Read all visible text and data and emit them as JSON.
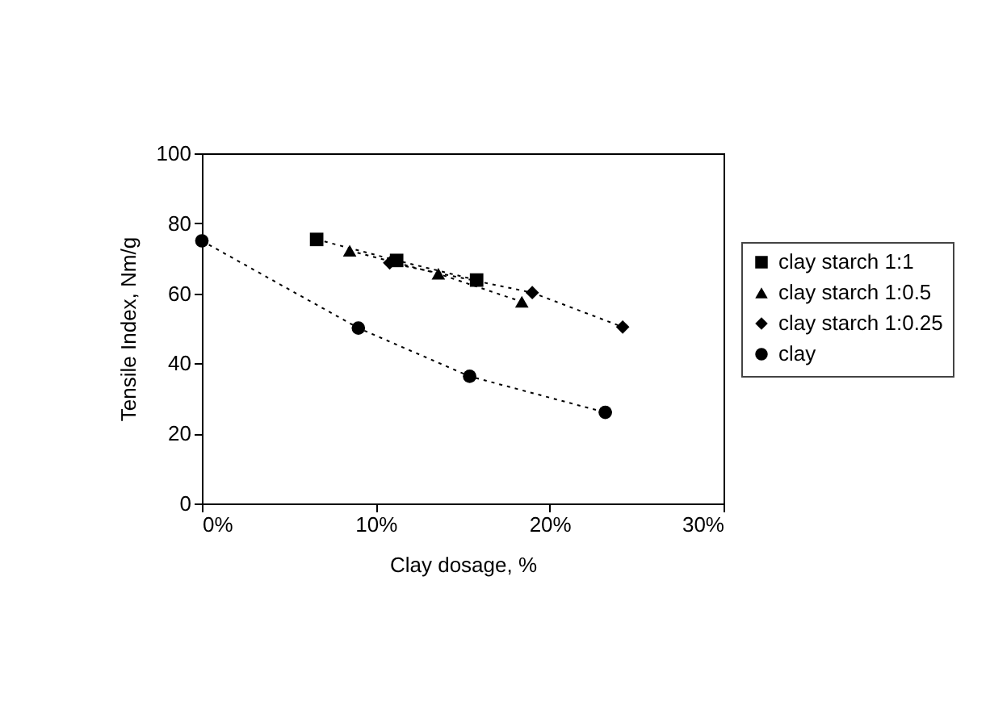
{
  "chart_data": {
    "type": "line",
    "xlabel": "Clay dosage, %",
    "ylabel": "Tensile Index, Nm/g",
    "xlim": [
      0,
      30
    ],
    "xticks": [
      {
        "value": 0,
        "label": "0%"
      },
      {
        "value": 10,
        "label": "10%"
      },
      {
        "value": 20,
        "label": "20%"
      },
      {
        "value": 30,
        "label": "30%"
      }
    ],
    "ylim": [
      0,
      100
    ],
    "yticks": [
      0,
      20,
      40,
      60,
      80,
      100
    ],
    "grid": false,
    "legend": "right",
    "line_style": "dotted",
    "series": [
      {
        "name": "clay starch 1:1",
        "color": "#000000",
        "marker": "square",
        "x": [
          6.6,
          11.2,
          15.8
        ],
        "values": [
          75.4,
          69.4,
          63.8
        ]
      },
      {
        "name": "clay starch 1:0.5",
        "color": "#000000",
        "marker": "triangle",
        "x": [
          8.5,
          13.6,
          18.4
        ],
        "values": [
          72.2,
          65.6,
          57.6
        ]
      },
      {
        "name": "clay starch 1:0.25",
        "color": "#000000",
        "marker": "diamond",
        "x": [
          10.8,
          19.0,
          24.2
        ],
        "values": [
          68.7,
          60.2,
          50.4
        ]
      },
      {
        "name": "clay",
        "color": "#000000",
        "marker": "circle",
        "x": [
          0,
          9.0,
          15.4,
          23.2
        ],
        "values": [
          75,
          50.1,
          36.3,
          26
        ]
      }
    ]
  }
}
